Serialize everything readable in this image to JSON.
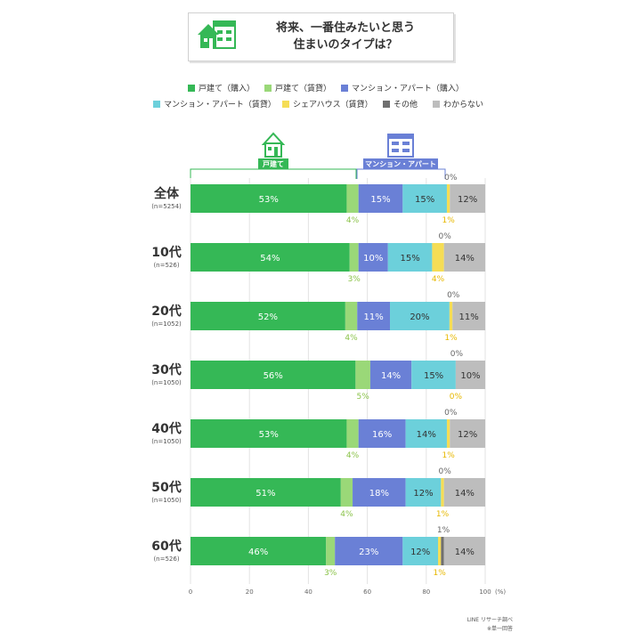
{
  "title": {
    "line1": "将来、一番住みたいと思う",
    "line2": "住まいのタイプは？"
  },
  "colors": {
    "own_house": "#35b856",
    "rent_house": "#9ad878",
    "own_mansion": "#6a80d6",
    "rent_mansion": "#6cd0db",
    "shared_house": "#f5dd55",
    "other": "#6f6f6f",
    "unknown": "#bdbdbd",
    "house_bracket": "#35b856",
    "mansion_bracket": "#6a80d6"
  },
  "group_labels": {
    "house": "戸建て",
    "mansion": "マンション・アパート"
  },
  "footer": {
    "source": "LINE リサーチ調べ",
    "note": "※単一回答"
  },
  "chart_data": {
    "type": "bar",
    "orientation": "horizontal",
    "stacked": true,
    "categories": [
      {
        "label": "全体",
        "n": "(n=5254)"
      },
      {
        "label": "10代",
        "n": "(n=526)"
      },
      {
        "label": "20代",
        "n": "(n=1052)"
      },
      {
        "label": "30代",
        "n": "(n=1050)"
      },
      {
        "label": "40代",
        "n": "(n=1050)"
      },
      {
        "label": "50代",
        "n": "(n=1050)"
      },
      {
        "label": "60代",
        "n": "(n=526)"
      }
    ],
    "series": [
      {
        "name": "戸建て（購入）",
        "key": "own_house",
        "values": [
          53,
          54,
          52,
          56,
          53,
          51,
          46
        ]
      },
      {
        "name": "戸建て（賃貸）",
        "key": "rent_house",
        "values": [
          4,
          3,
          4,
          5,
          4,
          4,
          3
        ]
      },
      {
        "name": "マンション・アパート（購入）",
        "key": "own_mansion",
        "values": [
          15,
          10,
          11,
          14,
          16,
          18,
          23
        ]
      },
      {
        "name": "マンション・アパート（賃貸）",
        "key": "rent_mansion",
        "values": [
          15,
          15,
          20,
          15,
          14,
          12,
          12
        ]
      },
      {
        "name": "シェアハウス（賃貸）",
        "key": "shared_house",
        "values": [
          1,
          4,
          1,
          0,
          1,
          1,
          1
        ]
      },
      {
        "name": "その他",
        "key": "other",
        "values": [
          0,
          0,
          0,
          0,
          0,
          0,
          1
        ]
      },
      {
        "name": "わからない",
        "key": "unknown",
        "values": [
          12,
          14,
          11,
          10,
          12,
          14,
          14
        ]
      }
    ],
    "value_suffix": "%",
    "xlim": [
      0,
      100
    ],
    "xticks": [
      "0",
      "20",
      "40",
      "60",
      "80",
      "100"
    ],
    "xunit": "(%)",
    "legend_position": "top",
    "grid": true
  }
}
